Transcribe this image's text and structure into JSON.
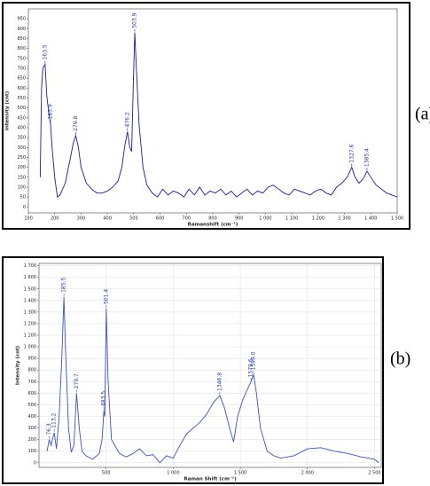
{
  "chart_data": [
    {
      "type": "line",
      "panel": "(a)",
      "x_label": "Ramanshift (cm⁻¹)",
      "y_label": "Intensity (cnt)",
      "xlim": [
        100,
        1500
      ],
      "ylim": [
        -30,
        1000
      ],
      "grid": false,
      "xticks": [
        100,
        200,
        300,
        400,
        500,
        600,
        700,
        800,
        900,
        {
          "value": 1000,
          "label": "1 000"
        },
        {
          "value": 1100,
          "label": "1 100"
        },
        {
          "value": 1200,
          "label": "1 200"
        },
        {
          "value": 1300,
          "label": "1 300"
        },
        {
          "value": 1400,
          "label": "1 400"
        },
        {
          "value": 1500,
          "label": "1 500"
        }
      ],
      "yticks": [
        0,
        50,
        100,
        150,
        200,
        250,
        300,
        350,
        400,
        450,
        500,
        550,
        600,
        650,
        700,
        750,
        800,
        850,
        900,
        950
      ],
      "peaks": [
        163.5,
        183.9,
        279.8,
        476.2,
        503.9,
        1327.6,
        1385.4
      ],
      "series": [
        {
          "color": "#1a1aa8",
          "x": [
            145,
            150,
            155,
            163.5,
            170,
            178,
            183.9,
            190,
            200,
            210,
            220,
            240,
            260,
            270,
            279.8,
            290,
            300,
            320,
            340,
            360,
            380,
            400,
            420,
            440,
            455,
            465,
            476.2,
            485,
            492,
            498,
            503.9,
            510,
            520,
            535,
            550,
            570,
            590,
            610,
            630,
            650,
            670,
            690,
            710,
            730,
            750,
            770,
            790,
            810,
            830,
            850,
            870,
            890,
            910,
            930,
            950,
            970,
            990,
            1010,
            1030,
            1050,
            1070,
            1090,
            1110,
            1130,
            1150,
            1170,
            1190,
            1210,
            1230,
            1250,
            1270,
            1290,
            1310,
            1327.6,
            1340,
            1355,
            1370,
            1385.4,
            1400,
            1420,
            1440,
            1460,
            1480,
            1500
          ],
          "values": [
            150,
            600,
            700,
            720,
            560,
            470,
            420,
            300,
            150,
            50,
            60,
            120,
            250,
            320,
            360,
            300,
            200,
            120,
            90,
            70,
            70,
            80,
            100,
            130,
            200,
            300,
            380,
            300,
            280,
            600,
            880,
            700,
            420,
            200,
            110,
            70,
            50,
            90,
            60,
            80,
            70,
            50,
            90,
            60,
            100,
            60,
            80,
            70,
            90,
            60,
            80,
            50,
            70,
            90,
            60,
            80,
            70,
            100,
            110,
            90,
            70,
            60,
            90,
            80,
            70,
            60,
            80,
            90,
            70,
            60,
            100,
            120,
            150,
            200,
            150,
            120,
            140,
            180,
            150,
            110,
            90,
            70,
            60,
            50
          ]
        }
      ]
    },
    {
      "type": "line",
      "panel": "(b)",
      "x_label": "Raman Shift (cm⁻¹)",
      "y_label": "Intensity (cnt)",
      "xlim": [
        0,
        2550
      ],
      "ylim": [
        -40,
        1720
      ],
      "grid": true,
      "xticks": [
        500,
        {
          "value": 1000,
          "label": "1 000"
        },
        {
          "value": 1500,
          "label": "1 500"
        },
        {
          "value": 2000,
          "label": "2 000"
        },
        {
          "value": 2500,
          "label": "2 500"
        }
      ],
      "yticks": [
        0,
        100,
        200,
        300,
        400,
        500,
        600,
        700,
        800,
        900,
        {
          "value": 1000,
          "label": "1 000"
        },
        {
          "value": 1100,
          "label": "1 100"
        },
        {
          "value": 1200,
          "label": "1 200"
        },
        {
          "value": 1300,
          "label": "1 300"
        },
        {
          "value": 1400,
          "label": "1 400"
        },
        {
          "value": 1500,
          "label": "1 500"
        },
        {
          "value": 1600,
          "label": "1 600"
        },
        {
          "value": 1700,
          "label": "1 700"
        }
      ],
      "peaks": [
        76.3,
        113.2,
        185.5,
        279.7,
        483.5,
        501.4,
        1346.8,
        1579.6,
        {
          "value": 1599,
          "label": "1599.0"
        }
      ],
      "series": [
        {
          "color": "#3b4fd0",
          "x": [
            60,
            76.3,
            90,
            113.2,
            130,
            150,
            170,
            185.5,
            200,
            220,
            240,
            260,
            279.7,
            300,
            320,
            350,
            400,
            450,
            470,
            483.5,
            490,
            501.4,
            515,
            540,
            600,
            650,
            700,
            750,
            800,
            850,
            900,
            950,
            1000,
            1050,
            1100,
            1150,
            1200,
            1250,
            1300,
            1346.8,
            1380,
            1420,
            1450,
            1480,
            1520,
            1560,
            1579.6,
            1599,
            1620,
            1650,
            1700,
            1750,
            1800,
            1900,
            2000,
            2100,
            2200,
            2300,
            2400,
            2500,
            2530
          ],
          "values": [
            100,
            200,
            150,
            260,
            120,
            400,
            900,
            1430,
            900,
            300,
            90,
            150,
            600,
            300,
            100,
            60,
            30,
            80,
            200,
            450,
            400,
            1330,
            700,
            200,
            80,
            50,
            80,
            120,
            60,
            70,
            0,
            60,
            40,
            150,
            250,
            300,
            350,
            420,
            520,
            580,
            480,
            300,
            180,
            400,
            550,
            650,
            700,
            760,
            600,
            300,
            100,
            60,
            40,
            60,
            120,
            130,
            100,
            80,
            50,
            30,
            0
          ]
        }
      ]
    }
  ]
}
